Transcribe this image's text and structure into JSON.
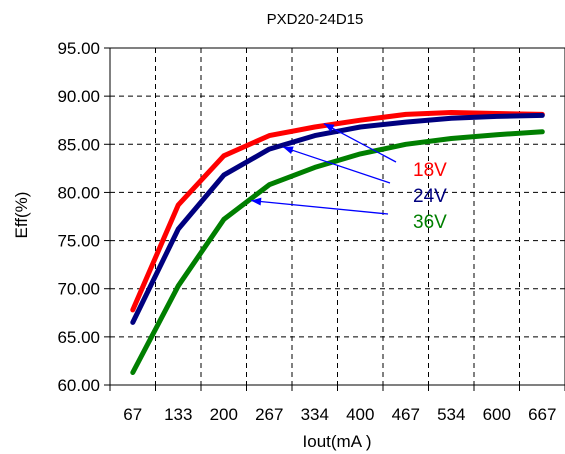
{
  "chart_data": {
    "type": "line",
    "title": "PXD20-24D15",
    "xlabel": "Iout(mA )",
    "ylabel": "Eff(%)",
    "categories": [
      "67",
      "133",
      "200",
      "267",
      "334",
      "400",
      "467",
      "534",
      "600",
      "667"
    ],
    "ylim": [
      60,
      95
    ],
    "yticks": [
      "95.00",
      "90.00",
      "85.00",
      "80.00",
      "75.00",
      "70.00",
      "65.00",
      "60.00"
    ],
    "grid": true,
    "series": [
      {
        "name": "18V",
        "color": "#ff0000",
        "values": [
          67.8,
          78.7,
          83.8,
          85.9,
          86.8,
          87.5,
          88.1,
          88.3,
          88.2,
          88.1
        ]
      },
      {
        "name": "24V",
        "color": "#00007f",
        "values": [
          66.5,
          76.2,
          81.8,
          84.5,
          85.9,
          86.8,
          87.3,
          87.7,
          87.9,
          88.0
        ]
      },
      {
        "name": "36V",
        "color": "#007f00",
        "values": [
          61.3,
          70.3,
          77.2,
          80.8,
          82.6,
          84.0,
          85.0,
          85.6,
          86.0,
          86.3
        ]
      }
    ]
  }
}
